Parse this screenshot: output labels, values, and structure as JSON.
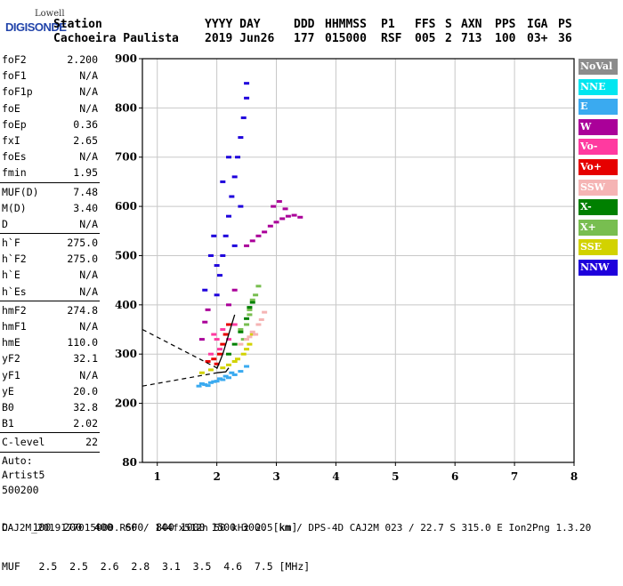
{
  "logo": {
    "line1": "Lowell",
    "line2": "DIGISONDE"
  },
  "header": {
    "labels": {
      "station": "Station",
      "date": "YYYY DAY",
      "doy": "DDD",
      "time": "HHMMSS",
      "p1": "P1",
      "ffs": "FFS",
      "s": "S",
      "axn": "AXN",
      "pps": "PPS",
      "iga": "IGA",
      "ps": "PS"
    },
    "values": {
      "station": "Cachoeira Paulista",
      "date": "2019 Jun26",
      "doy": "177",
      "time": "015000",
      "p1": "RSF",
      "ffs": "005",
      "s": "2",
      "axn": "713",
      "pps": "100",
      "iga": "03+",
      "ps": "36"
    }
  },
  "params": {
    "group1": [
      [
        "foF2",
        "2.200"
      ],
      [
        "foF1",
        "N/A"
      ],
      [
        "foF1p",
        "N/A"
      ],
      [
        "foE",
        "N/A"
      ],
      [
        "foEp",
        "0.36"
      ],
      [
        "fxI",
        "2.65"
      ],
      [
        "foEs",
        "N/A"
      ],
      [
        "fmin",
        "1.95"
      ]
    ],
    "group2": [
      [
        "MUF(D)",
        "7.48"
      ],
      [
        "M(D)",
        "3.40"
      ],
      [
        "D",
        "N/A"
      ]
    ],
    "group3": [
      [
        "h`F",
        "275.0"
      ],
      [
        "h`F2",
        "275.0"
      ],
      [
        "h`E",
        "N/A"
      ],
      [
        "h`Es",
        "N/A"
      ]
    ],
    "group4": [
      [
        "hmF2",
        "274.8"
      ],
      [
        "hmF1",
        "N/A"
      ],
      [
        "hmE",
        "110.0"
      ],
      [
        "yF2",
        "32.1"
      ],
      [
        "yF1",
        "N/A"
      ],
      [
        "yE",
        "20.0"
      ],
      [
        "B0",
        "32.8"
      ],
      [
        "B1",
        "2.02"
      ]
    ],
    "group5": [
      [
        "C-level",
        "22"
      ]
    ],
    "auto": [
      "Auto:",
      "Artist5",
      "500200"
    ]
  },
  "legend": [
    {
      "label": "NoVal",
      "color": "#8c8c8c"
    },
    {
      "label": "NNE",
      "color": "#00e6f0"
    },
    {
      "label": "E",
      "color": "#3aaaf0"
    },
    {
      "label": "W",
      "color": "#aa0099"
    },
    {
      "label": "Vo-",
      "color": "#ff3aa0"
    },
    {
      "label": "Vo+",
      "color": "#e60000"
    },
    {
      "label": "SSW",
      "color": "#f5b4b4"
    },
    {
      "label": "X-",
      "color": "#008000"
    },
    {
      "label": "X+",
      "color": "#78be50"
    },
    {
      "label": "SSE",
      "color": "#d2d200"
    },
    {
      "label": "NNW",
      "color": "#1e00dc"
    }
  ],
  "bottom": {
    "d_row": "D    100  200  400  600  800 1000 1500 3000 [km]",
    "muf_row": "MUF   2.5  2.5  2.6  2.8  3.1  3.5  4.6  7.5 [MHz]"
  },
  "footer": "CAJ2M_2019177015000.RSF / 144fx512h 50 kHz 2.5 km / DPS-4D CAJ2M 023 / 22.7 S 315.0 E Ion2Png 1.3.20",
  "chart_data": {
    "type": "scatter",
    "xlim": [
      0.75,
      8
    ],
    "ylim": [
      80,
      900
    ],
    "x_ticks": [
      1,
      2,
      3,
      4,
      5,
      6,
      7,
      8
    ],
    "y_ticks": [
      80,
      200,
      300,
      400,
      500,
      600,
      700,
      800,
      900
    ],
    "grid": true,
    "series": [
      {
        "name": "E",
        "points": [
          [
            1.7,
            235
          ],
          [
            1.8,
            238
          ],
          [
            1.9,
            242
          ],
          [
            2.0,
            245
          ],
          [
            2.1,
            248
          ],
          [
            2.2,
            252
          ],
          [
            2.3,
            258
          ],
          [
            2.4,
            265
          ],
          [
            2.5,
            275
          ],
          [
            1.75,
            240
          ],
          [
            1.85,
            236
          ],
          [
            1.95,
            244
          ],
          [
            2.05,
            250
          ],
          [
            2.15,
            255
          ],
          [
            2.25,
            262
          ]
        ]
      },
      {
        "name": "SSE",
        "points": [
          [
            1.75,
            262
          ],
          [
            1.9,
            268
          ],
          [
            2.1,
            272
          ],
          [
            2.3,
            285
          ],
          [
            2.45,
            300
          ],
          [
            2.55,
            320
          ],
          [
            2.6,
            340
          ],
          [
            2.5,
            310
          ],
          [
            2.35,
            290
          ],
          [
            2.2,
            278
          ]
        ]
      },
      {
        "name": "X+",
        "points": [
          [
            2.45,
            330
          ],
          [
            2.5,
            360
          ],
          [
            2.55,
            390
          ],
          [
            2.6,
            410
          ],
          [
            2.65,
            420
          ],
          [
            2.7,
            438
          ],
          [
            2.55,
            380
          ],
          [
            2.4,
            350
          ]
        ]
      },
      {
        "name": "X-",
        "points": [
          [
            2.2,
            300
          ],
          [
            2.3,
            320
          ],
          [
            2.4,
            345
          ],
          [
            2.5,
            372
          ],
          [
            2.55,
            395
          ],
          [
            2.6,
            405
          ]
        ]
      },
      {
        "name": "SSW",
        "points": [
          [
            2.4,
            320
          ],
          [
            2.5,
            330
          ],
          [
            2.6,
            345
          ],
          [
            2.7,
            360
          ],
          [
            2.75,
            370
          ],
          [
            2.8,
            385
          ],
          [
            2.65,
            340
          ],
          [
            2.55,
            335
          ]
        ]
      },
      {
        "name": "Vo+",
        "points": [
          [
            2.0,
            280
          ],
          [
            2.05,
            300
          ],
          [
            2.1,
            320
          ],
          [
            2.15,
            340
          ],
          [
            2.2,
            360
          ],
          [
            1.95,
            290
          ],
          [
            1.85,
            285
          ]
        ]
      },
      {
        "name": "Vo-",
        "points": [
          [
            1.9,
            300
          ],
          [
            2.0,
            330
          ],
          [
            2.1,
            350
          ],
          [
            2.2,
            330
          ],
          [
            2.3,
            360
          ],
          [
            1.95,
            340
          ],
          [
            2.05,
            310
          ]
        ]
      },
      {
        "name": "W",
        "points": [
          [
            2.5,
            520
          ],
          [
            2.6,
            530
          ],
          [
            2.7,
            540
          ],
          [
            2.8,
            548
          ],
          [
            2.9,
            560
          ],
          [
            3.0,
            568
          ],
          [
            3.1,
            575
          ],
          [
            3.2,
            580
          ],
          [
            3.3,
            582
          ],
          [
            3.4,
            578
          ],
          [
            2.95,
            600
          ],
          [
            3.05,
            610
          ],
          [
            3.15,
            595
          ],
          [
            2.2,
            400
          ],
          [
            2.3,
            430
          ],
          [
            1.85,
            390
          ],
          [
            1.8,
            365
          ],
          [
            1.75,
            330
          ]
        ]
      },
      {
        "name": "NNW",
        "points": [
          [
            2.0,
            420
          ],
          [
            2.05,
            460
          ],
          [
            2.1,
            500
          ],
          [
            2.15,
            540
          ],
          [
            2.2,
            580
          ],
          [
            2.25,
            620
          ],
          [
            2.3,
            660
          ],
          [
            2.35,
            700
          ],
          [
            2.4,
            740
          ],
          [
            2.45,
            780
          ],
          [
            2.5,
            820
          ],
          [
            2.5,
            850
          ],
          [
            1.9,
            500
          ],
          [
            1.95,
            540
          ],
          [
            2.1,
            650
          ],
          [
            2.2,
            700
          ],
          [
            1.8,
            430
          ],
          [
            2.0,
            480
          ],
          [
            2.3,
            520
          ],
          [
            2.4,
            600
          ]
        ]
      }
    ],
    "traces": [
      {
        "name": "profile",
        "points": [
          [
            2.0,
            270
          ],
          [
            2.05,
            285
          ],
          [
            2.1,
            300
          ],
          [
            2.15,
            320
          ],
          [
            2.2,
            340
          ],
          [
            2.25,
            360
          ],
          [
            2.3,
            380
          ]
        ]
      },
      {
        "name": "profile-lower",
        "points": [
          [
            2.0,
            262
          ],
          [
            2.15,
            264
          ],
          [
            2.2,
            272
          ]
        ]
      }
    ]
  }
}
